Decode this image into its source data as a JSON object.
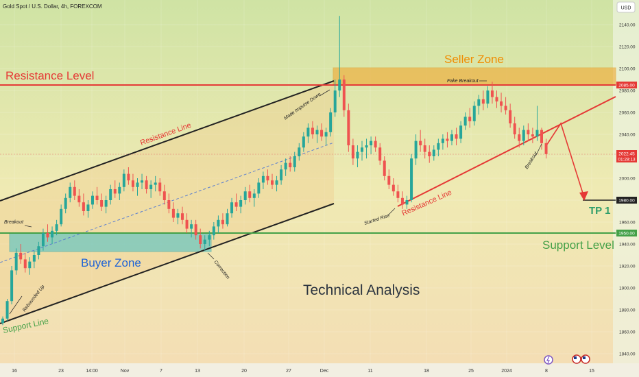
{
  "header": {
    "symbol_label": "Gold Spot / U.S. Dollar, 4h, FOREXCOM",
    "currency_button": "USD"
  },
  "chart_data": {
    "type": "candlestick",
    "price_axis": {
      "ticks": [
        1840,
        1860,
        1880,
        1900,
        1920,
        1940,
        1960,
        1980,
        2000,
        2020,
        2040,
        2060,
        2080,
        2100,
        2120,
        2140
      ],
      "tick_labels": [
        "1840.00",
        "1860.00",
        "1880.00",
        "1900.00",
        "1920.00",
        "1940.00",
        "1960.00",
        "1980.00",
        "2000.00",
        "2020.00",
        "2040.00",
        "2060.00",
        "2080.00",
        "2100.00",
        "2120.00",
        "2140.00"
      ],
      "range": [
        1833,
        2168
      ]
    },
    "time_axis": {
      "labels": [
        "16",
        "23",
        "14:00",
        "Nov",
        "7",
        "13",
        "20",
        "27",
        "Dec",
        "11",
        "18",
        "25",
        "2024",
        "8",
        "15"
      ]
    },
    "candles": [
      {
        "t": 0,
        "o": 1868,
        "h": 1874,
        "l": 1866,
        "c": 1872
      },
      {
        "t": 1,
        "o": 1872,
        "h": 1890,
        "l": 1870,
        "c": 1888
      },
      {
        "t": 2,
        "o": 1888,
        "h": 1920,
        "l": 1885,
        "c": 1916
      },
      {
        "t": 3,
        "o": 1916,
        "h": 1936,
        "l": 1912,
        "c": 1932
      },
      {
        "t": 4,
        "o": 1932,
        "h": 1940,
        "l": 1922,
        "c": 1926
      },
      {
        "t": 5,
        "o": 1926,
        "h": 1932,
        "l": 1914,
        "c": 1918
      },
      {
        "t": 6,
        "o": 1918,
        "h": 1928,
        "l": 1912,
        "c": 1924
      },
      {
        "t": 7,
        "o": 1924,
        "h": 1934,
        "l": 1918,
        "c": 1930
      },
      {
        "t": 8,
        "o": 1930,
        "h": 1942,
        "l": 1926,
        "c": 1938
      },
      {
        "t": 9,
        "o": 1938,
        "h": 1954,
        "l": 1934,
        "c": 1950
      },
      {
        "t": 10,
        "o": 1950,
        "h": 1958,
        "l": 1942,
        "c": 1946
      },
      {
        "t": 11,
        "o": 1946,
        "h": 1956,
        "l": 1940,
        "c": 1952
      },
      {
        "t": 12,
        "o": 1952,
        "h": 1962,
        "l": 1948,
        "c": 1958
      },
      {
        "t": 13,
        "o": 1958,
        "h": 1976,
        "l": 1956,
        "c": 1972
      },
      {
        "t": 14,
        "o": 1972,
        "h": 1986,
        "l": 1968,
        "c": 1982
      },
      {
        "t": 15,
        "o": 1982,
        "h": 1996,
        "l": 1978,
        "c": 1992
      },
      {
        "t": 16,
        "o": 1992,
        "h": 1998,
        "l": 1980,
        "c": 1984
      },
      {
        "t": 17,
        "o": 1984,
        "h": 1990,
        "l": 1974,
        "c": 1978
      },
      {
        "t": 18,
        "o": 1978,
        "h": 1986,
        "l": 1966,
        "c": 1970
      },
      {
        "t": 19,
        "o": 1970,
        "h": 1980,
        "l": 1964,
        "c": 1976
      },
      {
        "t": 20,
        "o": 1976,
        "h": 1988,
        "l": 1972,
        "c": 1984
      },
      {
        "t": 21,
        "o": 1984,
        "h": 1992,
        "l": 1976,
        "c": 1980
      },
      {
        "t": 22,
        "o": 1980,
        "h": 1986,
        "l": 1970,
        "c": 1974
      },
      {
        "t": 23,
        "o": 1974,
        "h": 1984,
        "l": 1968,
        "c": 1980
      },
      {
        "t": 24,
        "o": 1980,
        "h": 1994,
        "l": 1976,
        "c": 1990
      },
      {
        "t": 25,
        "o": 1990,
        "h": 1998,
        "l": 1982,
        "c": 1986
      },
      {
        "t": 26,
        "o": 1986,
        "h": 1996,
        "l": 1980,
        "c": 1992
      },
      {
        "t": 27,
        "o": 1992,
        "h": 2008,
        "l": 1988,
        "c": 2004
      },
      {
        "t": 28,
        "o": 2004,
        "h": 2010,
        "l": 1994,
        "c": 1998
      },
      {
        "t": 29,
        "o": 1998,
        "h": 2004,
        "l": 1988,
        "c": 1992
      },
      {
        "t": 30,
        "o": 1992,
        "h": 2000,
        "l": 1984,
        "c": 1996
      },
      {
        "t": 31,
        "o": 1996,
        "h": 2004,
        "l": 1990,
        "c": 1998
      },
      {
        "t": 32,
        "o": 1998,
        "h": 2002,
        "l": 1986,
        "c": 1990
      },
      {
        "t": 33,
        "o": 1990,
        "h": 1998,
        "l": 1982,
        "c": 1994
      },
      {
        "t": 34,
        "o": 1994,
        "h": 2002,
        "l": 1988,
        "c": 1996
      },
      {
        "t": 35,
        "o": 1996,
        "h": 2000,
        "l": 1984,
        "c": 1988
      },
      {
        "t": 36,
        "o": 1988,
        "h": 1994,
        "l": 1976,
        "c": 1980
      },
      {
        "t": 37,
        "o": 1980,
        "h": 1986,
        "l": 1968,
        "c": 1972
      },
      {
        "t": 38,
        "o": 1972,
        "h": 1978,
        "l": 1960,
        "c": 1964
      },
      {
        "t": 39,
        "o": 1964,
        "h": 1972,
        "l": 1958,
        "c": 1968
      },
      {
        "t": 40,
        "o": 1968,
        "h": 1974,
        "l": 1958,
        "c": 1962
      },
      {
        "t": 41,
        "o": 1962,
        "h": 1968,
        "l": 1950,
        "c": 1954
      },
      {
        "t": 42,
        "o": 1954,
        "h": 1962,
        "l": 1946,
        "c": 1958
      },
      {
        "t": 43,
        "o": 1958,
        "h": 1962,
        "l": 1944,
        "c": 1948
      },
      {
        "t": 44,
        "o": 1948,
        "h": 1954,
        "l": 1936,
        "c": 1940
      },
      {
        "t": 45,
        "o": 1940,
        "h": 1948,
        "l": 1934,
        "c": 1944
      },
      {
        "t": 46,
        "o": 1944,
        "h": 1952,
        "l": 1938,
        "c": 1948
      },
      {
        "t": 47,
        "o": 1948,
        "h": 1960,
        "l": 1944,
        "c": 1956
      },
      {
        "t": 48,
        "o": 1956,
        "h": 1966,
        "l": 1950,
        "c": 1962
      },
      {
        "t": 49,
        "o": 1962,
        "h": 1968,
        "l": 1954,
        "c": 1958
      },
      {
        "t": 50,
        "o": 1958,
        "h": 1972,
        "l": 1956,
        "c": 1968
      },
      {
        "t": 51,
        "o": 1968,
        "h": 1982,
        "l": 1964,
        "c": 1978
      },
      {
        "t": 52,
        "o": 1978,
        "h": 1986,
        "l": 1970,
        "c": 1974
      },
      {
        "t": 53,
        "o": 1974,
        "h": 1984,
        "l": 1968,
        "c": 1980
      },
      {
        "t": 54,
        "o": 1980,
        "h": 1992,
        "l": 1976,
        "c": 1988
      },
      {
        "t": 55,
        "o": 1988,
        "h": 1994,
        "l": 1978,
        "c": 1982
      },
      {
        "t": 56,
        "o": 1982,
        "h": 1990,
        "l": 1974,
        "c": 1986
      },
      {
        "t": 57,
        "o": 1986,
        "h": 2000,
        "l": 1982,
        "c": 1996
      },
      {
        "t": 58,
        "o": 1996,
        "h": 2006,
        "l": 1990,
        "c": 2002
      },
      {
        "t": 59,
        "o": 2002,
        "h": 2008,
        "l": 1994,
        "c": 1998
      },
      {
        "t": 60,
        "o": 1998,
        "h": 2004,
        "l": 1990,
        "c": 1994
      },
      {
        "t": 61,
        "o": 1994,
        "h": 2002,
        "l": 1988,
        "c": 1998
      },
      {
        "t": 62,
        "o": 1998,
        "h": 2012,
        "l": 1994,
        "c": 2008
      },
      {
        "t": 63,
        "o": 2008,
        "h": 2018,
        "l": 2002,
        "c": 2014
      },
      {
        "t": 64,
        "o": 2014,
        "h": 2020,
        "l": 2006,
        "c": 2010
      },
      {
        "t": 65,
        "o": 2010,
        "h": 2024,
        "l": 2006,
        "c": 2020
      },
      {
        "t": 66,
        "o": 2020,
        "h": 2032,
        "l": 2016,
        "c": 2028
      },
      {
        "t": 67,
        "o": 2028,
        "h": 2042,
        "l": 2024,
        "c": 2038
      },
      {
        "t": 68,
        "o": 2038,
        "h": 2050,
        "l": 2032,
        "c": 2046
      },
      {
        "t": 69,
        "o": 2046,
        "h": 2052,
        "l": 2036,
        "c": 2040
      },
      {
        "t": 70,
        "o": 2040,
        "h": 2048,
        "l": 2032,
        "c": 2044
      },
      {
        "t": 71,
        "o": 2044,
        "h": 2050,
        "l": 2034,
        "c": 2038
      },
      {
        "t": 72,
        "o": 2038,
        "h": 2046,
        "l": 2030,
        "c": 2042
      },
      {
        "t": 73,
        "o": 2042,
        "h": 2064,
        "l": 2038,
        "c": 2060
      },
      {
        "t": 74,
        "o": 2060,
        "h": 2090,
        "l": 2056,
        "c": 2080
      },
      {
        "t": 75,
        "o": 2080,
        "h": 2148,
        "l": 2074,
        "c": 2090
      },
      {
        "t": 76,
        "o": 2090,
        "h": 2094,
        "l": 2056,
        "c": 2062
      },
      {
        "t": 77,
        "o": 2062,
        "h": 2068,
        "l": 2024,
        "c": 2030
      },
      {
        "t": 78,
        "o": 2030,
        "h": 2036,
        "l": 2012,
        "c": 2018
      },
      {
        "t": 79,
        "o": 2018,
        "h": 2030,
        "l": 2010,
        "c": 2024
      },
      {
        "t": 80,
        "o": 2024,
        "h": 2034,
        "l": 2016,
        "c": 2028
      },
      {
        "t": 81,
        "o": 2028,
        "h": 2036,
        "l": 2018,
        "c": 2030
      },
      {
        "t": 82,
        "o": 2030,
        "h": 2038,
        "l": 2022,
        "c": 2034
      },
      {
        "t": 83,
        "o": 2034,
        "h": 2038,
        "l": 2024,
        "c": 2028
      },
      {
        "t": 84,
        "o": 2028,
        "h": 2032,
        "l": 2012,
        "c": 2016
      },
      {
        "t": 85,
        "o": 2016,
        "h": 2020,
        "l": 1998,
        "c": 2002
      },
      {
        "t": 86,
        "o": 2002,
        "h": 2008,
        "l": 1990,
        "c": 1994
      },
      {
        "t": 87,
        "o": 1994,
        "h": 2000,
        "l": 1984,
        "c": 1988
      },
      {
        "t": 88,
        "o": 1988,
        "h": 1994,
        "l": 1978,
        "c": 1982
      },
      {
        "t": 89,
        "o": 1982,
        "h": 1988,
        "l": 1972,
        "c": 1976
      },
      {
        "t": 90,
        "o": 1976,
        "h": 1984,
        "l": 1972,
        "c": 1980
      },
      {
        "t": 91,
        "o": 1980,
        "h": 2022,
        "l": 1978,
        "c": 2018
      },
      {
        "t": 92,
        "o": 2018,
        "h": 2040,
        "l": 2012,
        "c": 2034
      },
      {
        "t": 93,
        "o": 2034,
        "h": 2044,
        "l": 2024,
        "c": 2030
      },
      {
        "t": 94,
        "o": 2030,
        "h": 2036,
        "l": 2018,
        "c": 2024
      },
      {
        "t": 95,
        "o": 2024,
        "h": 2030,
        "l": 2014,
        "c": 2020
      },
      {
        "t": 96,
        "o": 2020,
        "h": 2030,
        "l": 2016,
        "c": 2026
      },
      {
        "t": 97,
        "o": 2026,
        "h": 2036,
        "l": 2020,
        "c": 2032
      },
      {
        "t": 98,
        "o": 2032,
        "h": 2040,
        "l": 2026,
        "c": 2036
      },
      {
        "t": 99,
        "o": 2036,
        "h": 2042,
        "l": 2028,
        "c": 2034
      },
      {
        "t": 100,
        "o": 2034,
        "h": 2044,
        "l": 2030,
        "c": 2040
      },
      {
        "t": 101,
        "o": 2040,
        "h": 2046,
        "l": 2030,
        "c": 2036
      },
      {
        "t": 102,
        "o": 2036,
        "h": 2052,
        "l": 2032,
        "c": 2048
      },
      {
        "t": 103,
        "o": 2048,
        "h": 2060,
        "l": 2044,
        "c": 2056
      },
      {
        "t": 104,
        "o": 2056,
        "h": 2064,
        "l": 2046,
        "c": 2052
      },
      {
        "t": 105,
        "o": 2052,
        "h": 2070,
        "l": 2048,
        "c": 2066
      },
      {
        "t": 106,
        "o": 2066,
        "h": 2076,
        "l": 2058,
        "c": 2072
      },
      {
        "t": 107,
        "o": 2072,
        "h": 2080,
        "l": 2062,
        "c": 2068
      },
      {
        "t": 108,
        "o": 2068,
        "h": 2084,
        "l": 2064,
        "c": 2080
      },
      {
        "t": 109,
        "o": 2080,
        "h": 2088,
        "l": 2068,
        "c": 2074
      },
      {
        "t": 110,
        "o": 2074,
        "h": 2080,
        "l": 2064,
        "c": 2070
      },
      {
        "t": 111,
        "o": 2070,
        "h": 2078,
        "l": 2060,
        "c": 2066
      },
      {
        "t": 112,
        "o": 2066,
        "h": 2074,
        "l": 2058,
        "c": 2062
      },
      {
        "t": 113,
        "o": 2062,
        "h": 2068,
        "l": 2046,
        "c": 2050
      },
      {
        "t": 114,
        "o": 2050,
        "h": 2056,
        "l": 2036,
        "c": 2040
      },
      {
        "t": 115,
        "o": 2040,
        "h": 2046,
        "l": 2028,
        "c": 2034
      },
      {
        "t": 116,
        "o": 2034,
        "h": 2048,
        "l": 2030,
        "c": 2044
      },
      {
        "t": 117,
        "o": 2044,
        "h": 2050,
        "l": 2034,
        "c": 2040
      },
      {
        "t": 118,
        "o": 2040,
        "h": 2046,
        "l": 2032,
        "c": 2038
      },
      {
        "t": 119,
        "o": 2038,
        "h": 2066,
        "l": 2034,
        "c": 2044
      },
      {
        "t": 120,
        "o": 2044,
        "h": 2046,
        "l": 2026,
        "c": 2032
      },
      {
        "t": 121,
        "o": 2032,
        "h": 2036,
        "l": 2018,
        "c": 2022
      }
    ],
    "horizontal_levels": [
      {
        "label": "Resistance Level",
        "price": 2085,
        "price_label": "2085.00",
        "color": "#e53935"
      },
      {
        "label": "Support Level",
        "price": 1950,
        "price_label": "1950.00",
        "color": "#43a047"
      },
      {
        "label": "TP 1",
        "price": 1980,
        "price_label": "1980.00",
        "color": "#000000"
      }
    ],
    "current_price": {
      "price_label": "2022.45",
      "countdown": "01:28:13",
      "price": 2022.45,
      "color": "#e53935"
    },
    "zones": [
      {
        "label": "Seller Zone",
        "price_top": 2100,
        "price_bottom": 2085,
        "color": "#f0a830"
      },
      {
        "label": "Buyer Zone",
        "price_top": 1950,
        "price_bottom": 1933,
        "color": "#4fc3c7"
      }
    ],
    "annotations": {
      "resistance_line": "Resistance Line",
      "support_line": "Support Line",
      "resistance_line_2": "Resistance Line",
      "breakout_left": "Breakout",
      "rebounded_up": "Rebounded Up",
      "correction": "Correction",
      "made_impulse_down": "Made Impulse Down",
      "started_rise": "Started Rise",
      "fake_breakout": "Fake Breakout",
      "breakout_right": "Breakout",
      "technical_analysis": "Technical Analysis"
    },
    "colors": {
      "up": "#26a69a",
      "down": "#ef5350",
      "channel": "#222222",
      "resistance_trend": "#e53935"
    }
  }
}
